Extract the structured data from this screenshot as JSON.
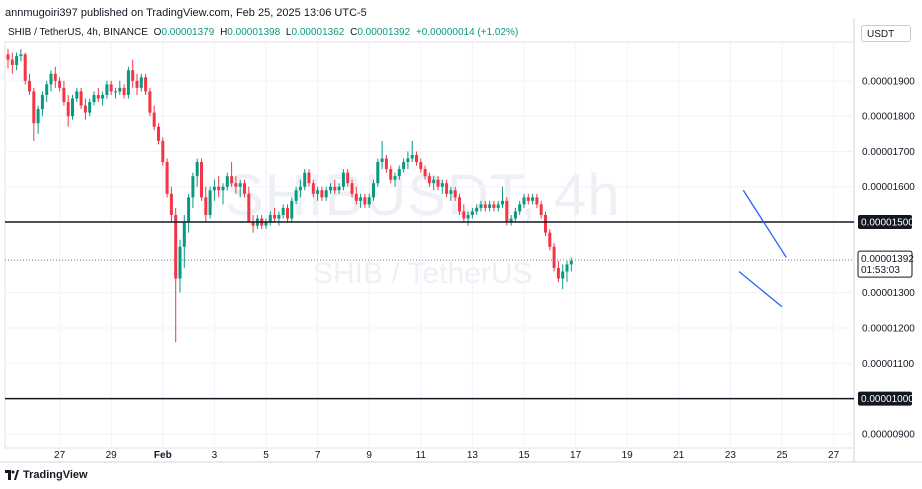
{
  "header": {
    "credit": "annmugoiri397 published on TradingView.com, Feb 25, 2025 13:06 UTC-5",
    "symbol": "SHIB / TetherUS, 4h, BINANCE",
    "ohlc": [
      {
        "label": "O",
        "value": "0.00001379"
      },
      {
        "label": "H",
        "value": "0.00001398"
      },
      {
        "label": "L",
        "value": "0.00001362"
      },
      {
        "label": "C",
        "value": "0.00001392"
      }
    ],
    "change": "+0.00000014 (+1.02%)",
    "currency": "USDT"
  },
  "watermark": {
    "ticker": "SHIBUSDT, 4h",
    "name": "SHIB / TetherUS"
  },
  "footer": {
    "brand": "TradingView"
  },
  "colors": {
    "up": "#089981",
    "down": "#f23645",
    "channel": "#2962ff",
    "level": "#131722",
    "grid": "#f0f3fa"
  },
  "chart_data": {
    "type": "candlestick",
    "series_name": "SHIB / TetherUS, 4h",
    "ylim": [
      8.6e-06,
      2.01e-05
    ],
    "y_ticks": [
      "0.00001900",
      "0.00001800",
      "0.00001700",
      "0.00001600",
      "0.00001300",
      "0.00001200",
      "0.00001100",
      "0.00000900"
    ],
    "x_ticks": [
      "27",
      "29",
      "Feb",
      "3",
      "5",
      "7",
      "9",
      "11",
      "13",
      "15",
      "17",
      "19",
      "21",
      "23",
      "25",
      "27"
    ],
    "x_tick_index": [
      12,
      24,
      36,
      48,
      60,
      72,
      84,
      96,
      108,
      120,
      132,
      144,
      156,
      168,
      180,
      192
    ],
    "horizontal_levels": [
      {
        "value": 1.5e-05,
        "label": "0.00001500"
      },
      {
        "value": 1e-05,
        "label": "0.00001000"
      }
    ],
    "last_price": {
      "value": 1.392e-05,
      "label": "0.00001392",
      "countdown": "01:53:03"
    },
    "channel_lines": [
      {
        "from": [
          171,
          1.59e-05
        ],
        "to": [
          181,
          1.4e-05
        ]
      },
      {
        "from": [
          170,
          1.36e-05
        ],
        "to": [
          180,
          1.26e-05
        ]
      }
    ],
    "candles": [
      [
        1.975e-05,
        1.99e-05,
        1.935e-05,
        1.96e-05
      ],
      [
        1.96e-05,
        1.98e-05,
        1.92e-05,
        1.945e-05
      ],
      [
        1.945e-05,
        1.98e-05,
        1.93e-05,
        1.97e-05
      ],
      [
        1.97e-05,
        1.99e-05,
        1.955e-05,
        1.975e-05
      ],
      [
        1.975e-05,
        1.98e-05,
        1.89e-05,
        1.9e-05
      ],
      [
        1.9e-05,
        1.92e-05,
        1.86e-05,
        1.87e-05
      ],
      [
        1.87e-05,
        1.88e-05,
        1.73e-05,
        1.78e-05
      ],
      [
        1.78e-05,
        1.83e-05,
        1.75e-05,
        1.82e-05
      ],
      [
        1.82e-05,
        1.87e-05,
        1.8e-05,
        1.86e-05
      ],
      [
        1.86e-05,
        1.9e-05,
        1.84e-05,
        1.89e-05
      ],
      [
        1.89e-05,
        1.93e-05,
        1.87e-05,
        1.92e-05
      ],
      [
        1.92e-05,
        1.94e-05,
        1.88e-05,
        1.9e-05
      ],
      [
        1.9e-05,
        1.91e-05,
        1.87e-05,
        1.88e-05
      ],
      [
        1.88e-05,
        1.9e-05,
        1.83e-05,
        1.84e-05
      ],
      [
        1.84e-05,
        1.86e-05,
        1.77e-05,
        1.8e-05
      ],
      [
        1.8e-05,
        1.86e-05,
        1.79e-05,
        1.85e-05
      ],
      [
        1.85e-05,
        1.88e-05,
        1.84e-05,
        1.87e-05
      ],
      [
        1.87e-05,
        1.88e-05,
        1.82e-05,
        1.83e-05
      ],
      [
        1.83e-05,
        1.85e-05,
        1.79e-05,
        1.81e-05
      ],
      [
        1.81e-05,
        1.85e-05,
        1.8e-05,
        1.84e-05
      ],
      [
        1.84e-05,
        1.87e-05,
        1.83e-05,
        1.86e-05
      ],
      [
        1.86e-05,
        1.88e-05,
        1.84e-05,
        1.85e-05
      ],
      [
        1.85e-05,
        1.87e-05,
        1.83e-05,
        1.86e-05
      ],
      [
        1.86e-05,
        1.9e-05,
        1.85e-05,
        1.89e-05
      ],
      [
        1.89e-05,
        1.9e-05,
        1.86e-05,
        1.87e-05
      ],
      [
        1.87e-05,
        1.88e-05,
        1.85e-05,
        1.87e-05
      ],
      [
        1.87e-05,
        1.9e-05,
        1.86e-05,
        1.88e-05
      ],
      [
        1.88e-05,
        1.89e-05,
        1.85e-05,
        1.86e-05
      ],
      [
        1.86e-05,
        1.94e-05,
        1.85e-05,
        1.93e-05
      ],
      [
        1.93e-05,
        1.96e-05,
        1.88e-05,
        1.9e-05
      ],
      [
        1.9e-05,
        1.92e-05,
        1.86e-05,
        1.88e-05
      ],
      [
        1.88e-05,
        1.92e-05,
        1.87e-05,
        1.91e-05
      ],
      [
        1.91e-05,
        1.92e-05,
        1.86e-05,
        1.87e-05
      ],
      [
        1.87e-05,
        1.88e-05,
        1.8e-05,
        1.81e-05
      ],
      [
        1.81e-05,
        1.83e-05,
        1.76e-05,
        1.77e-05
      ],
      [
        1.77e-05,
        1.78e-05,
        1.72e-05,
        1.73e-05
      ],
      [
        1.73e-05,
        1.74e-05,
        1.66e-05,
        1.67e-05
      ],
      [
        1.67e-05,
        1.68e-05,
        1.57e-05,
        1.58e-05
      ],
      [
        1.58e-05,
        1.6e-05,
        1.5e-05,
        1.52e-05
      ],
      [
        1.52e-05,
        1.54e-05,
        1.16e-05,
        1.34e-05
      ],
      [
        1.34e-05,
        1.45e-05,
        1.3e-05,
        1.43e-05
      ],
      [
        1.43e-05,
        1.52e-05,
        1.37e-05,
        1.5e-05
      ],
      [
        1.5e-05,
        1.58e-05,
        1.47e-05,
        1.57e-05
      ],
      [
        1.57e-05,
        1.64e-05,
        1.54e-05,
        1.63e-05
      ],
      [
        1.63e-05,
        1.68e-05,
        1.6e-05,
        1.67e-05
      ],
      [
        1.67e-05,
        1.68e-05,
        1.56e-05,
        1.57e-05
      ],
      [
        1.57e-05,
        1.6e-05,
        1.5e-05,
        1.52e-05
      ],
      [
        1.52e-05,
        1.6e-05,
        1.51e-05,
        1.59e-05
      ],
      [
        1.59e-05,
        1.62e-05,
        1.56e-05,
        1.6e-05
      ],
      [
        1.6e-05,
        1.63e-05,
        1.57e-05,
        1.59e-05
      ],
      [
        1.59e-05,
        1.61e-05,
        1.55e-05,
        1.6e-05
      ],
      [
        1.6e-05,
        1.64e-05,
        1.59e-05,
        1.63e-05
      ],
      [
        1.63e-05,
        1.67e-05,
        1.6e-05,
        1.61e-05
      ],
      [
        1.61e-05,
        1.63e-05,
        1.58e-05,
        1.6e-05
      ],
      [
        1.6e-05,
        1.62e-05,
        1.57e-05,
        1.61e-05
      ],
      [
        1.61e-05,
        1.62e-05,
        1.57e-05,
        1.58e-05
      ],
      [
        1.58e-05,
        1.6e-05,
        1.5e-05,
        1.5e-05
      ],
      [
        1.5e-05,
        1.52e-05,
        1.47e-05,
        1.49e-05
      ],
      [
        1.49e-05,
        1.52e-05,
        1.48e-05,
        1.51e-05
      ],
      [
        1.51e-05,
        1.52e-05,
        1.48e-05,
        1.49e-05
      ],
      [
        1.49e-05,
        1.51e-05,
        1.48e-05,
        1.5e-05
      ],
      [
        1.5e-05,
        1.53e-05,
        1.49e-05,
        1.52e-05
      ],
      [
        1.52e-05,
        1.54e-05,
        1.5e-05,
        1.51e-05
      ],
      [
        1.51e-05,
        1.53e-05,
        1.49e-05,
        1.52e-05
      ],
      [
        1.52e-05,
        1.55e-05,
        1.51e-05,
        1.54e-05
      ],
      [
        1.54e-05,
        1.55e-05,
        1.5e-05,
        1.51e-05
      ],
      [
        1.51e-05,
        1.57e-05,
        1.5e-05,
        1.56e-05
      ],
      [
        1.56e-05,
        1.6e-05,
        1.55e-05,
        1.59e-05
      ],
      [
        1.59e-05,
        1.62e-05,
        1.57e-05,
        1.6e-05
      ],
      [
        1.6e-05,
        1.65e-05,
        1.59e-05,
        1.64e-05
      ],
      [
        1.64e-05,
        1.65e-05,
        1.6e-05,
        1.61e-05
      ],
      [
        1.61e-05,
        1.62e-05,
        1.57e-05,
        1.58e-05
      ],
      [
        1.58e-05,
        1.6e-05,
        1.56e-05,
        1.59e-05
      ],
      [
        1.59e-05,
        1.6e-05,
        1.56e-05,
        1.57e-05
      ],
      [
        1.57e-05,
        1.6e-05,
        1.56e-05,
        1.59e-05
      ],
      [
        1.59e-05,
        1.61e-05,
        1.58e-05,
        1.6e-05
      ],
      [
        1.6e-05,
        1.62e-05,
        1.58e-05,
        1.59e-05
      ],
      [
        1.59e-05,
        1.61e-05,
        1.58e-05,
        1.6e-05
      ],
      [
        1.6e-05,
        1.65e-05,
        1.59e-05,
        1.64e-05
      ],
      [
        1.64e-05,
        1.65e-05,
        1.6e-05,
        1.61e-05
      ],
      [
        1.61e-05,
        1.62e-05,
        1.57e-05,
        1.58e-05
      ],
      [
        1.58e-05,
        1.6e-05,
        1.55e-05,
        1.56e-05
      ],
      [
        1.56e-05,
        1.58e-05,
        1.54e-05,
        1.57e-05
      ],
      [
        1.57e-05,
        1.58e-05,
        1.54e-05,
        1.55e-05
      ],
      [
        1.55e-05,
        1.58e-05,
        1.54e-05,
        1.57e-05
      ],
      [
        1.57e-05,
        1.62e-05,
        1.56e-05,
        1.61e-05
      ],
      [
        1.61e-05,
        1.68e-05,
        1.6e-05,
        1.67e-05
      ],
      [
        1.67e-05,
        1.73e-05,
        1.65e-05,
        1.68e-05
      ],
      [
        1.68e-05,
        1.69e-05,
        1.64e-05,
        1.65e-05
      ],
      [
        1.65e-05,
        1.66e-05,
        1.61e-05,
        1.62e-05
      ],
      [
        1.62e-05,
        1.64e-05,
        1.6e-05,
        1.63e-05
      ],
      [
        1.63e-05,
        1.66e-05,
        1.62e-05,
        1.65e-05
      ],
      [
        1.65e-05,
        1.68e-05,
        1.64e-05,
        1.67e-05
      ],
      [
        1.67e-05,
        1.7e-05,
        1.65e-05,
        1.68e-05
      ],
      [
        1.68e-05,
        1.73e-05,
        1.67e-05,
        1.69e-05
      ],
      [
        1.69e-05,
        1.7e-05,
        1.66e-05,
        1.67e-05
      ],
      [
        1.67e-05,
        1.68e-05,
        1.64e-05,
        1.65e-05
      ],
      [
        1.65e-05,
        1.66e-05,
        1.62e-05,
        1.63e-05
      ],
      [
        1.63e-05,
        1.64e-05,
        1.6e-05,
        1.61e-05
      ],
      [
        1.61e-05,
        1.63e-05,
        1.59e-05,
        1.62e-05
      ],
      [
        1.62e-05,
        1.63e-05,
        1.59e-05,
        1.6e-05
      ],
      [
        1.6e-05,
        1.62e-05,
        1.58e-05,
        1.61e-05
      ],
      [
        1.61e-05,
        1.62e-05,
        1.57e-05,
        1.58e-05
      ],
      [
        1.58e-05,
        1.6e-05,
        1.56e-05,
        1.59e-05
      ],
      [
        1.59e-05,
        1.6e-05,
        1.56e-05,
        1.57e-05
      ],
      [
        1.57e-05,
        1.58e-05,
        1.52e-05,
        1.53e-05
      ],
      [
        1.53e-05,
        1.55e-05,
        1.5e-05,
        1.51e-05
      ],
      [
        1.51e-05,
        1.53e-05,
        1.49e-05,
        1.52e-05
      ],
      [
        1.52e-05,
        1.54e-05,
        1.51e-05,
        1.53e-05
      ],
      [
        1.53e-05,
        1.55e-05,
        1.52e-05,
        1.54e-05
      ],
      [
        1.54e-05,
        1.56e-05,
        1.53e-05,
        1.55e-05
      ],
      [
        1.55e-05,
        1.56e-05,
        1.53e-05,
        1.54e-05
      ],
      [
        1.54e-05,
        1.56e-05,
        1.53e-05,
        1.55e-05
      ],
      [
        1.55e-05,
        1.56e-05,
        1.53e-05,
        1.54e-05
      ],
      [
        1.54e-05,
        1.56e-05,
        1.53e-05,
        1.55e-05
      ],
      [
        1.55e-05,
        1.6e-05,
        1.54e-05,
        1.56e-05
      ],
      [
        1.56e-05,
        1.57e-05,
        1.49e-05,
        1.5e-05
      ],
      [
        1.5e-05,
        1.52e-05,
        1.49e-05,
        1.51e-05
      ],
      [
        1.51e-05,
        1.54e-05,
        1.5e-05,
        1.53e-05
      ],
      [
        1.53e-05,
        1.56e-05,
        1.52e-05,
        1.55e-05
      ],
      [
        1.55e-05,
        1.58e-05,
        1.54e-05,
        1.57e-05
      ],
      [
        1.57e-05,
        1.58e-05,
        1.55e-05,
        1.56e-05
      ],
      [
        1.56e-05,
        1.58e-05,
        1.55e-05,
        1.57e-05
      ],
      [
        1.57e-05,
        1.58e-05,
        1.54e-05,
        1.55e-05
      ],
      [
        1.55e-05,
        1.56e-05,
        1.51e-05,
        1.52e-05
      ],
      [
        1.52e-05,
        1.53e-05,
        1.46e-05,
        1.47e-05
      ],
      [
        1.47e-05,
        1.48e-05,
        1.42e-05,
        1.43e-05
      ],
      [
        1.43e-05,
        1.44e-05,
        1.36e-05,
        1.37e-05
      ],
      [
        1.37e-05,
        1.39e-05,
        1.33e-05,
        1.34e-05
      ],
      [
        1.34e-05,
        1.38e-05,
        1.31e-05,
        1.36e-05
      ],
      [
        1.36e-05,
        1.39e-05,
        1.33e-05,
        1.38e-05
      ],
      [
        1.38e-05,
        1.4e-05,
        1.36e-05,
        1.39e-05
      ]
    ]
  }
}
